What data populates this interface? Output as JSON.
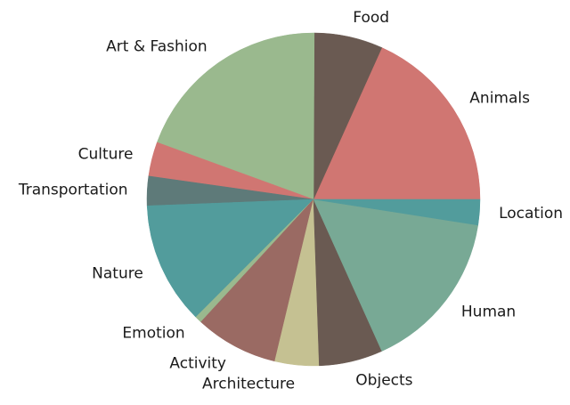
{
  "chart_data": {
    "type": "pie",
    "title": "",
    "start_angle_deg": 0,
    "direction": "counterclockwise",
    "slices": [
      {
        "label": "Animals",
        "value": 19.2,
        "color": "#D07672"
      },
      {
        "label": "Food",
        "value": 7.0,
        "color": "#6A5A52"
      },
      {
        "label": "Art & Fashion",
        "value": 20.5,
        "color": "#9AB98E"
      },
      {
        "label": "Culture",
        "value": 3.5,
        "color": "#D07672"
      },
      {
        "label": "Transportation",
        "value": 3.0,
        "color": "#5E7A79"
      },
      {
        "label": "Nature",
        "value": 12.5,
        "color": "#529C9C"
      },
      {
        "label": "Emotion",
        "value": 0.7,
        "color": "#9AB98E"
      },
      {
        "label": "Activity",
        "value": 8.5,
        "color": "#9A6A63"
      },
      {
        "label": "Architecture",
        "value": 4.5,
        "color": "#C5C192"
      },
      {
        "label": "Objects",
        "value": 6.5,
        "color": "#6A5A52"
      },
      {
        "label": "Human",
        "value": 16.6,
        "color": "#78A995"
      },
      {
        "label": "Location",
        "value": 2.6,
        "color": "#529C9C"
      }
    ]
  }
}
